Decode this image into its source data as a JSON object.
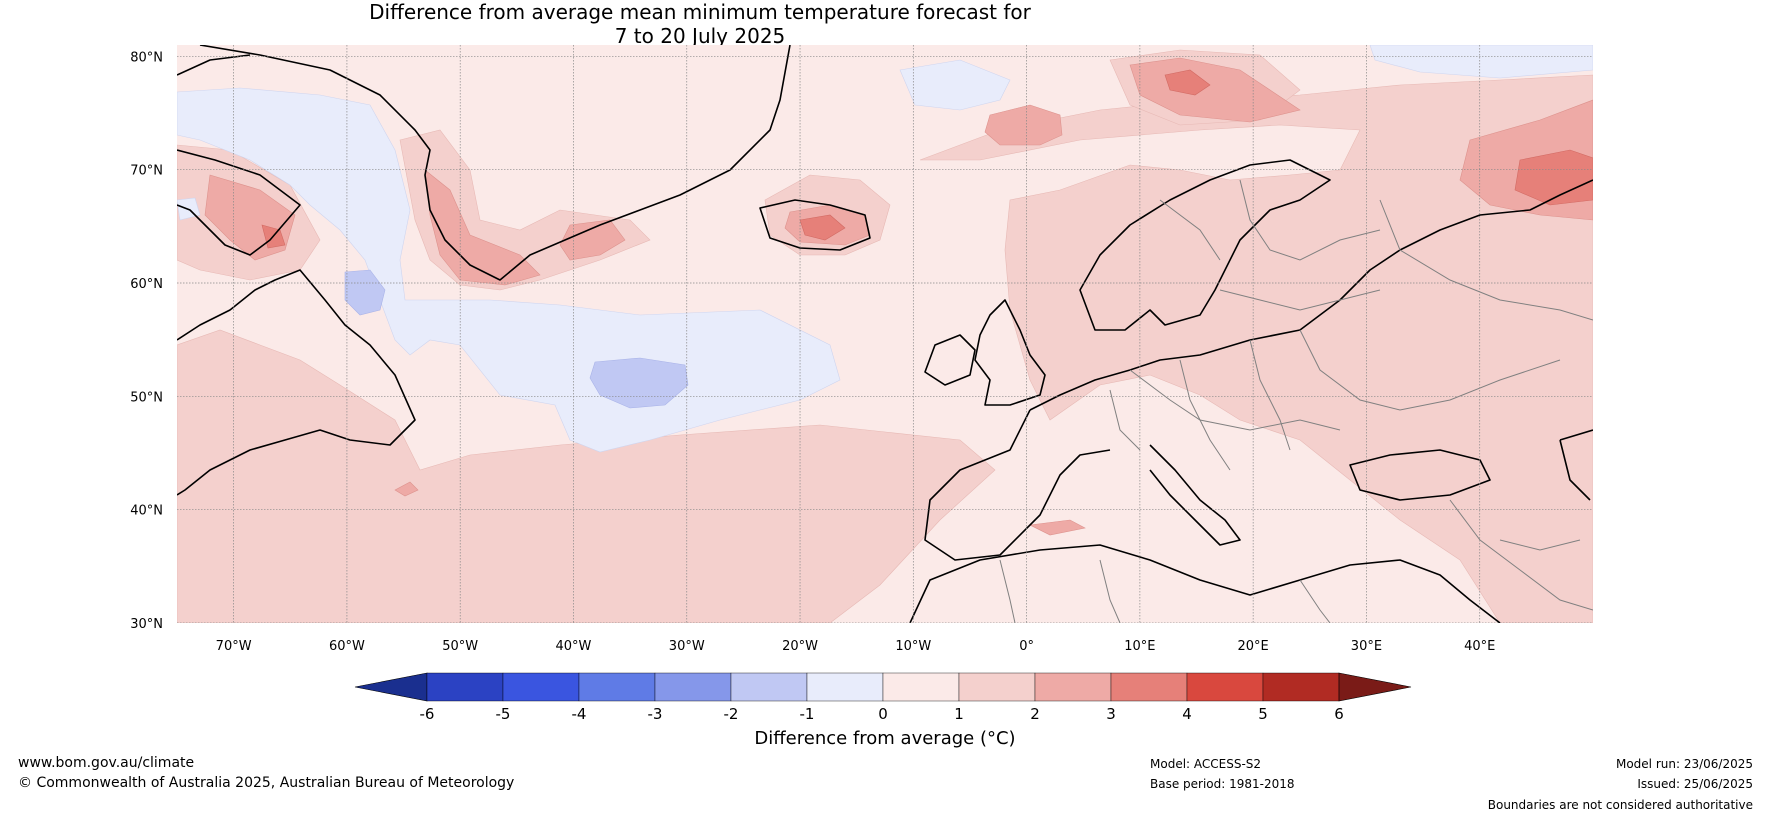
{
  "title": {
    "line1": "Difference from average mean minimum temperature forecast for",
    "line2": "7 to 20 July 2025"
  },
  "map": {
    "lat_labels": [
      "80°N",
      "70°N",
      "60°N",
      "50°N",
      "40°N",
      "30°N"
    ],
    "lon_labels": [
      "70°W",
      "60°W",
      "50°W",
      "40°W",
      "30°W",
      "20°W",
      "10°W",
      "0°",
      "10°E",
      "20°E",
      "30°E",
      "40°E"
    ],
    "lat_range": [
      30,
      81
    ],
    "lon_range": [
      -75,
      50
    ]
  },
  "colorbar": {
    "ticks": [
      "-6",
      "-5",
      "-4",
      "-3",
      "-2",
      "-1",
      "0",
      "1",
      "2",
      "3",
      "4",
      "5",
      "6"
    ],
    "colors": [
      "#1a2f8f",
      "#2b42c3",
      "#3a55e0",
      "#5f7be6",
      "#8597ea",
      "#c0c8f3",
      "#e8ecfb",
      "#fbeae8",
      "#f4d0cd",
      "#eeaaa6",
      "#e68079",
      "#d9483e",
      "#b12b23",
      "#7a1b17"
    ],
    "label": "Difference from average (°C)"
  },
  "footer": {
    "website": "www.bom.gov.au/climate",
    "copyright": "© Commonwealth of Australia 2025, Australian Bureau of Meteorology",
    "model": "Model: ACCESS-S2",
    "base_period": "Base period: 1981-2018",
    "model_run": "Model run: 23/06/2025",
    "issued": "Issued: 25/06/2025",
    "disclaimer": "Boundaries are not considered authoritative"
  }
}
